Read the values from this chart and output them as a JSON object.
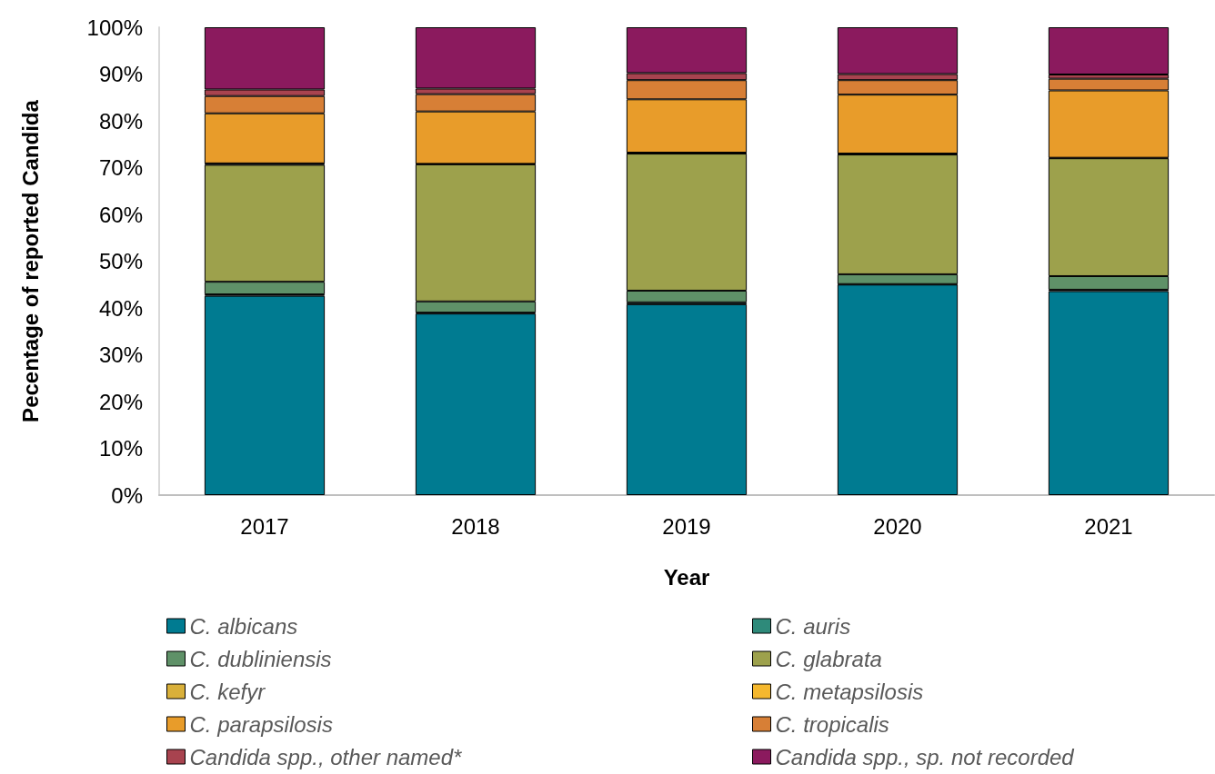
{
  "chart_data": {
    "type": "bar",
    "stacked": true,
    "xlabel": "Year",
    "ylabel": "Pecentage of reported Candida",
    "categories": [
      "2017",
      "2018",
      "2019",
      "2020",
      "2021"
    ],
    "ylim": [
      0,
      100
    ],
    "yticks": [
      {
        "value": 0,
        "label": "0%"
      },
      {
        "value": 10,
        "label": "10%"
      },
      {
        "value": 20,
        "label": "20%"
      },
      {
        "value": 30,
        "label": "30%"
      },
      {
        "value": 40,
        "label": "40%"
      },
      {
        "value": 50,
        "label": "50%"
      },
      {
        "value": 60,
        "label": "60%"
      },
      {
        "value": 70,
        "label": "70%"
      },
      {
        "value": 80,
        "label": "80%"
      },
      {
        "value": 90,
        "label": "90%"
      },
      {
        "value": 100,
        "label": "100%"
      }
    ],
    "legend": "bottom",
    "series": [
      {
        "name": "C. albicans",
        "color": "#007b91",
        "values": [
          42.6,
          38.8,
          40.8,
          45.0,
          43.6
        ]
      },
      {
        "name": "C. auris",
        "color": "#2e8a7a",
        "values": [
          0.3,
          0.2,
          0.4,
          0.1,
          0.3
        ]
      },
      {
        "name": "C. dubliniensis",
        "color": "#5f9168",
        "values": [
          2.7,
          2.4,
          2.5,
          2.1,
          2.9
        ]
      },
      {
        "name": "C. glabrata",
        "color": "#9da14c",
        "values": [
          25.0,
          29.3,
          29.3,
          25.6,
          25.2
        ]
      },
      {
        "name": "C. kefyr",
        "color": "#d9b03a",
        "values": [
          0.2,
          null,
          0.1,
          0.1,
          null
        ]
      },
      {
        "name": "C. metapsilosis",
        "color": "#f5b82e",
        "values": [
          0.1,
          0.1,
          0.1,
          0.1,
          0.1
        ]
      },
      {
        "name": "C. parapsilosis",
        "color": "#e89c2a",
        "values": [
          10.7,
          11.2,
          11.4,
          12.6,
          14.4
        ]
      },
      {
        "name": "C. tropicalis",
        "color": "#d77f36",
        "values": [
          3.7,
          3.7,
          4.1,
          3.1,
          2.5
        ]
      },
      {
        "name": "Candida spp., other named*",
        "color": "#a8434f",
        "values": [
          1.4,
          1.2,
          1.5,
          1.3,
          0.9
        ]
      },
      {
        "name": "Candida spp., sp. not recorded",
        "color": "#8b1a5e",
        "values": [
          13.3,
          13.1,
          9.8,
          10.0,
          10.1
        ]
      }
    ]
  }
}
